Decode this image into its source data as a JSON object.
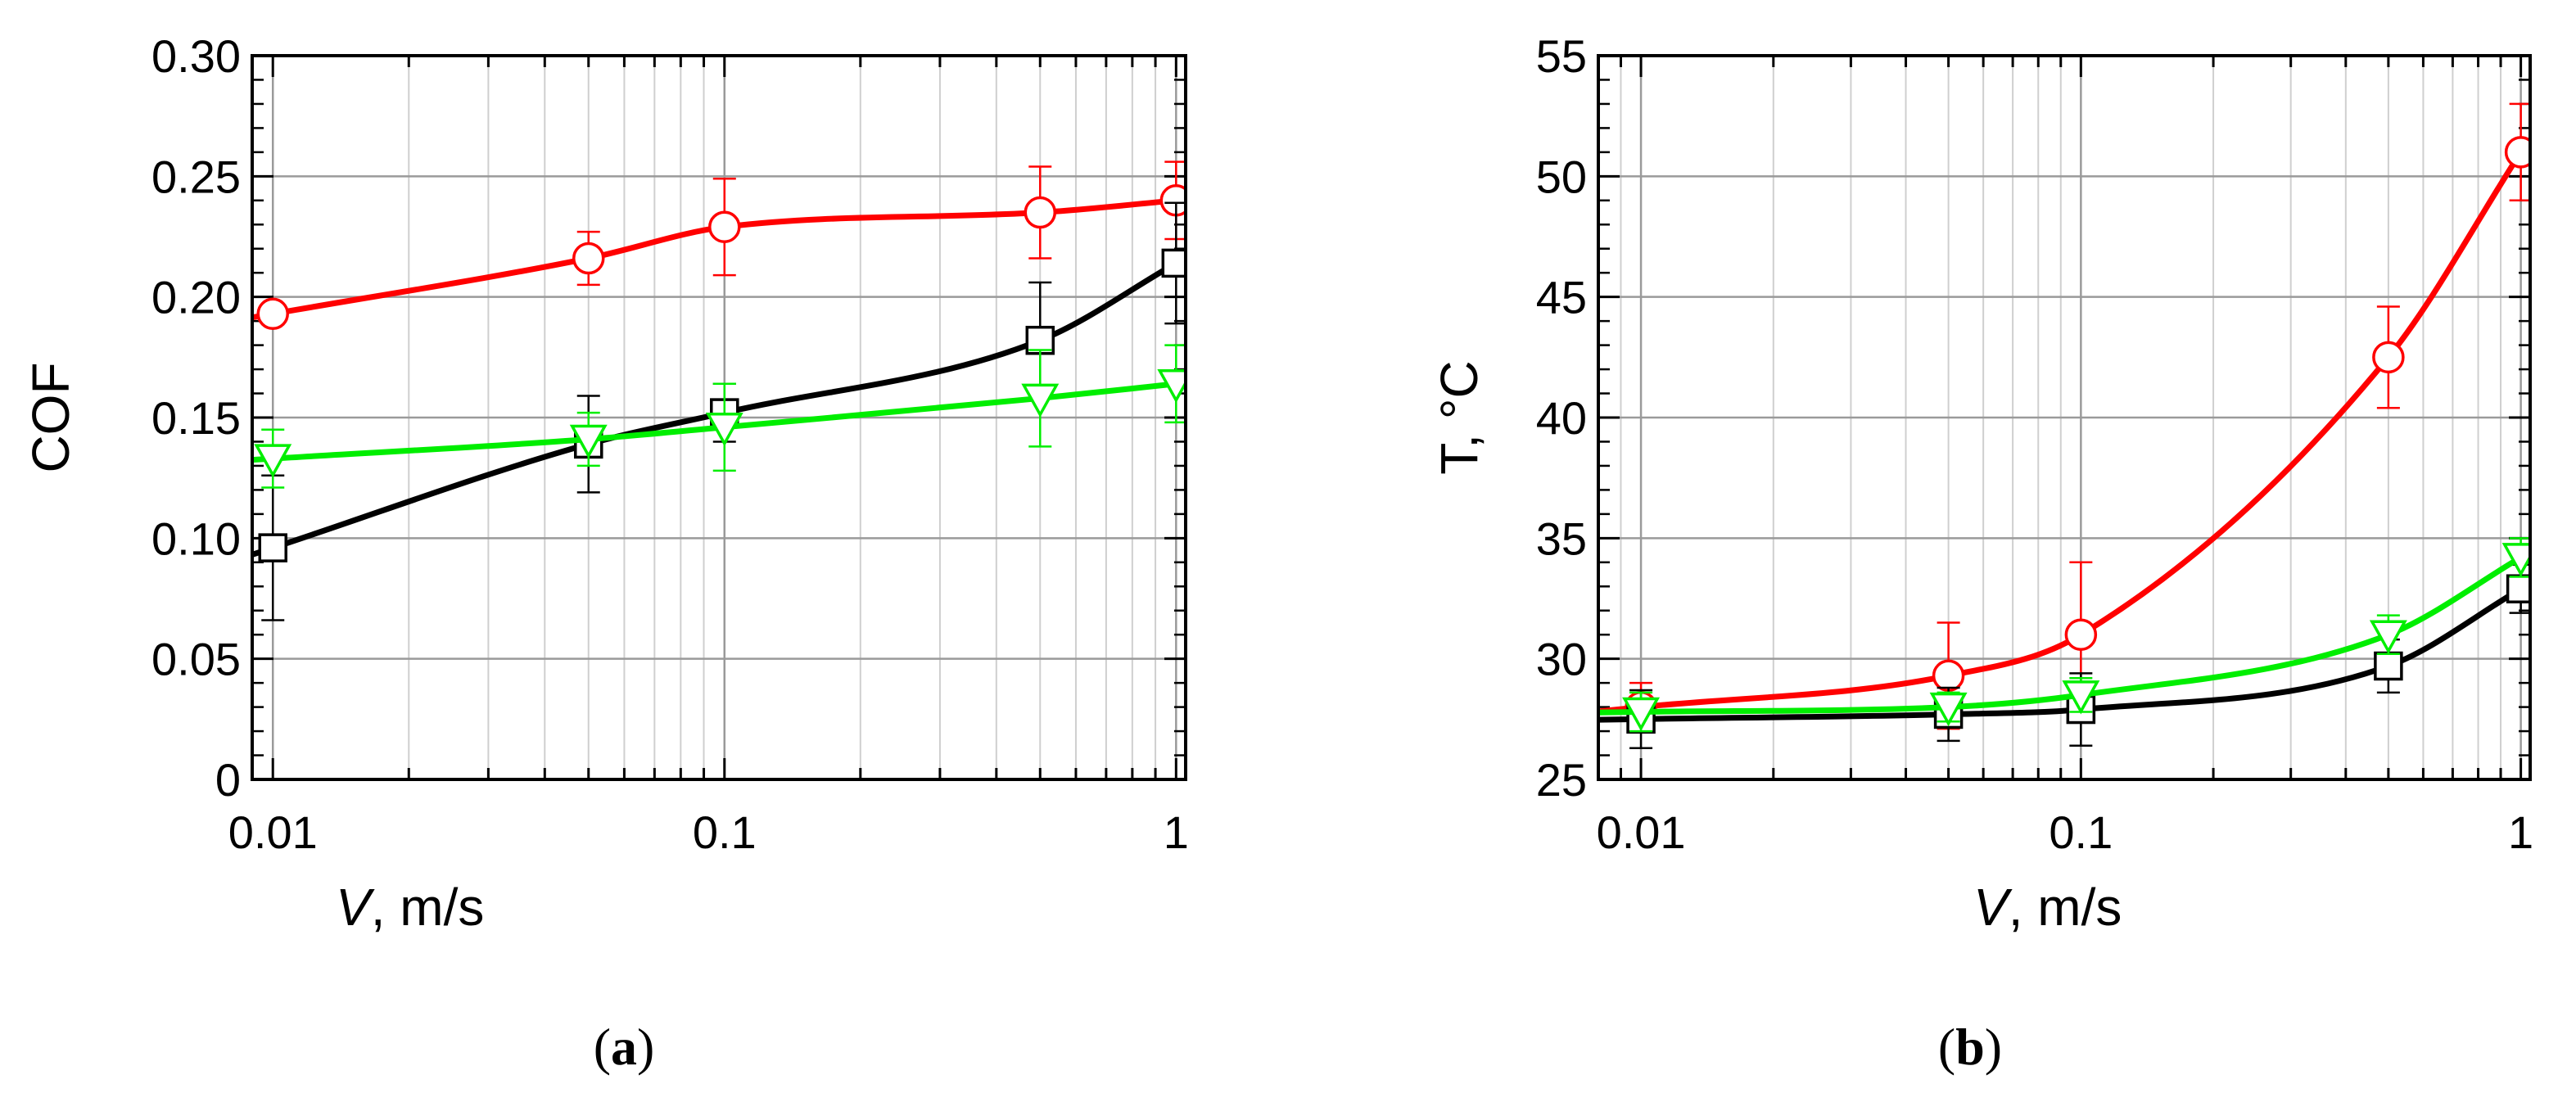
{
  "chart_data": [
    {
      "type": "line",
      "panel_label": "(a)",
      "panel_label_letter": "a",
      "ylabel": "COF",
      "xlabel_var": "V",
      "xlabel_unit": ", m/s",
      "x_scale": "log",
      "xlim": [
        0.009,
        1.05
      ],
      "ylim": [
        0,
        0.3
      ],
      "x_ticks": [
        0.01,
        0.1,
        1
      ],
      "x_tick_labels": [
        "0.01",
        "0.1",
        "1"
      ],
      "y_ticks": [
        0,
        0.05,
        0.1,
        0.15,
        0.2,
        0.25,
        0.3
      ],
      "y_tick_labels": [
        "0",
        "0.05",
        "0.10",
        "0.15",
        "0.20",
        "0.25",
        "0.30"
      ],
      "grid": true,
      "x": [
        0.01,
        0.05,
        0.1,
        0.5,
        1
      ],
      "series": [
        {
          "color": "#ff0000",
          "marker": "circle",
          "values": [
            0.193,
            0.216,
            0.229,
            0.235,
            0.24
          ],
          "errors": [
            0.004,
            0.011,
            0.02,
            0.019,
            0.016
          ],
          "curve_start": 0.009
        },
        {
          "color": "#000000",
          "marker": "square",
          "values": [
            0.096,
            0.139,
            0.152,
            0.182,
            0.214
          ],
          "errors": [
            0.03,
            0.02,
            0.012,
            0.024,
            0.025
          ],
          "curve_start": 0.009
        },
        {
          "color": "#00ee00",
          "marker": "triangle",
          "values": [
            0.133,
            0.141,
            0.146,
            0.158,
            0.164
          ],
          "errors": [
            0.012,
            0.011,
            0.018,
            0.02,
            0.016
          ],
          "curve_start": 0.009
        }
      ]
    },
    {
      "type": "line",
      "panel_label": "(b)",
      "panel_label_letter": "b",
      "ylabel": "T, °C",
      "xlabel_var": "V",
      "xlabel_unit": ", m/s",
      "x_scale": "log",
      "xlim": [
        0.008,
        1.05
      ],
      "ylim": [
        25,
        55
      ],
      "x_ticks": [
        0.01,
        0.1,
        1
      ],
      "x_tick_labels": [
        "0.01",
        "0.1",
        "1"
      ],
      "y_ticks": [
        25,
        30,
        35,
        40,
        45,
        50,
        55
      ],
      "y_tick_labels": [
        "25",
        "30",
        "35",
        "40",
        "45",
        "50",
        "55"
      ],
      "grid": true,
      "x": [
        0.01,
        0.05,
        0.1,
        0.5,
        1
      ],
      "series": [
        {
          "color": "#ff0000",
          "marker": "circle",
          "values": [
            28.0,
            29.3,
            31.0,
            42.5,
            51.0
          ],
          "errors": [
            1.0,
            2.2,
            3.0,
            2.1,
            2.0
          ],
          "curve_start": 0.008
        },
        {
          "color": "#000000",
          "marker": "square",
          "values": [
            27.5,
            27.7,
            27.9,
            29.7,
            32.9
          ],
          "errors": [
            1.2,
            1.1,
            1.5,
            1.1,
            1.0
          ],
          "curve_start": 0.008
        },
        {
          "color": "#00ee00",
          "marker": "triangle",
          "values": [
            27.8,
            28.0,
            28.5,
            31.0,
            34.2
          ],
          "errors": [
            0.8,
            0.6,
            0.7,
            0.8,
            0.8
          ],
          "curve_start": 0.008
        }
      ]
    }
  ]
}
